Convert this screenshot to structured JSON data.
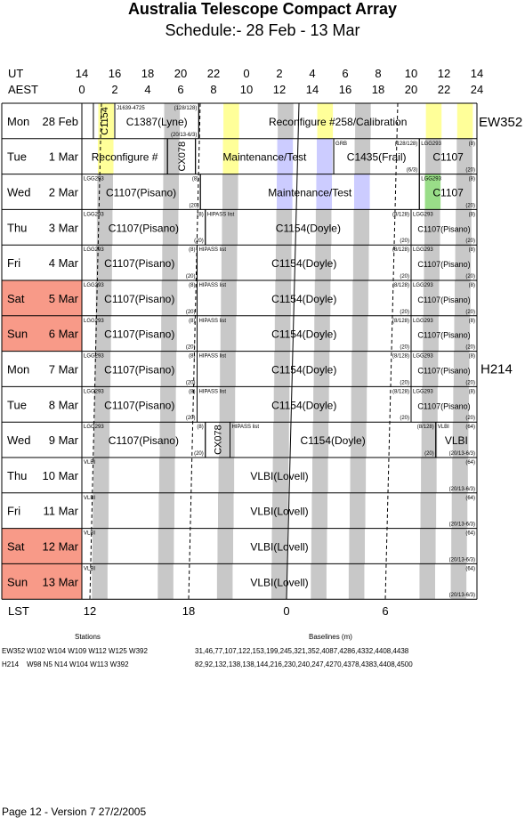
{
  "title": "Australia Telescope Compact Array",
  "subtitle": "Schedule:- 28 Feb - 13 Mar",
  "axis": {
    "ut_label": "UT",
    "aest_label": "AEST",
    "lst_label": "LST",
    "ut_ticks": [
      "14",
      "16",
      "18",
      "20",
      "22",
      "0",
      "2",
      "4",
      "6",
      "8",
      "10",
      "12",
      "14"
    ],
    "aest_ticks": [
      "0",
      "2",
      "4",
      "6",
      "8",
      "10",
      "12",
      "14",
      "16",
      "18",
      "20",
      "22",
      "24"
    ],
    "lst_ticks": [
      "12",
      "18",
      "0",
      "6"
    ]
  },
  "rows": [
    {
      "day": "Mon",
      "date": "28 Feb",
      "weekend": false
    },
    {
      "day": "Tue",
      "date": "1 Mar",
      "weekend": false
    },
    {
      "day": "Wed",
      "date": "2 Mar",
      "weekend": false
    },
    {
      "day": "Thu",
      "date": "3 Mar",
      "weekend": false
    },
    {
      "day": "Fri",
      "date": "4 Mar",
      "weekend": false
    },
    {
      "day": "Sat",
      "date": "5 Mar",
      "weekend": true
    },
    {
      "day": "Sun",
      "date": "6 Mar",
      "weekend": true
    },
    {
      "day": "Mon",
      "date": "7 Mar",
      "weekend": false
    },
    {
      "day": "Tue",
      "date": "8 Mar",
      "weekend": false
    },
    {
      "day": "Wed",
      "date": "9 Mar",
      "weekend": false
    },
    {
      "day": "Thu",
      "date": "10 Mar",
      "weekend": false
    },
    {
      "day": "Fri",
      "date": "11 Mar",
      "weekend": false
    },
    {
      "day": "Sat",
      "date": "12 Mar",
      "weekend": true
    },
    {
      "day": "Sun",
      "date": "13 Mar",
      "weekend": true
    }
  ],
  "config_labels": [
    "EW352",
    "H214"
  ],
  "blocks": [
    {
      "row": 0,
      "t0": 0.7,
      "t1": 2.0,
      "label": "C1154",
      "vertical": true,
      "size": 11
    },
    {
      "row": 0,
      "t0": 2.0,
      "t1": 7.1,
      "label": "C1387(Lyne)",
      "size": 12,
      "tl": "J1639-4725",
      "tr": "(128/128)",
      "br": "(20/13-6/3)"
    },
    {
      "row": 0,
      "t0": 7.1,
      "t1": 24.0,
      "label": "Reconfigure #258/Calibration",
      "size": 12
    },
    {
      "row": 1,
      "t0": 0,
      "t1": 5.2,
      "label": "Reconfigure #",
      "size": 12
    },
    {
      "row": 1,
      "t0": 5.2,
      "t1": 6.9,
      "label": "CX078",
      "vertical": true,
      "size": 11
    },
    {
      "row": 1,
      "t0": 6.9,
      "t1": 15.3,
      "label": "Maintenance/Test",
      "size": 12
    },
    {
      "row": 1,
      "t0": 15.3,
      "t1": 20.5,
      "label": "C1435(Frail)",
      "size": 12,
      "tl": "GRB",
      "tr": "(128/128)",
      "br": "(6/3)"
    },
    {
      "row": 1,
      "t0": 20.5,
      "t1": 24.0,
      "label": "C1107",
      "size": 12,
      "tl": "LGG293",
      "tr": "(8)",
      "br": "(20)"
    },
    {
      "row": 2,
      "t0": 0,
      "t1": 7.2,
      "label": "C1107(Pisano)",
      "size": 12,
      "tl": "LGG293",
      "tr": "(8)",
      "br": "(20)"
    },
    {
      "row": 2,
      "t0": 7.2,
      "t1": 20.5,
      "label": "Maintenance/Test",
      "size": 12
    },
    {
      "row": 2,
      "t0": 20.5,
      "t1": 24.0,
      "label": "C1107",
      "size": 12,
      "tl": "LGG293",
      "tr": "(8)",
      "br": "(20)"
    },
    {
      "row": 3,
      "t0": 0,
      "t1": 7.5,
      "label": "C1107(Pisano)",
      "size": 12,
      "tl": "LGG293",
      "tr": "(8)",
      "br": "(20)"
    },
    {
      "row": 3,
      "t0": 7.5,
      "t1": 20.0,
      "label": "C1154(Doyle)",
      "size": 12,
      "tl": "HIPASS list",
      "tr": "(8/128)",
      "br": "(20)"
    },
    {
      "row": 3,
      "t0": 20.0,
      "t1": 24.0,
      "label": "C1107(Pisano)",
      "size": 9,
      "tl": "LGG293",
      "tr": "(8)",
      "br": "(20)"
    },
    {
      "row": 4,
      "t0": 0,
      "t1": 7.0,
      "label": "C1107(Pisano)",
      "size": 12,
      "tl": "LGG293",
      "tr": "(8)",
      "br": "(20)"
    },
    {
      "row": 4,
      "t0": 7.0,
      "t1": 20.0,
      "label": "C1154(Doyle)",
      "size": 12,
      "tl": "HIPASS list",
      "tr": "(8/128)",
      "br": "(20)"
    },
    {
      "row": 4,
      "t0": 20.0,
      "t1": 24.0,
      "label": "C1107(Pisano)",
      "size": 9,
      "tl": "LGG293",
      "tr": "(8)",
      "br": "(20)"
    },
    {
      "row": 5,
      "t0": 0,
      "t1": 7.0,
      "label": "C1107(Pisano)",
      "size": 12,
      "tl": "LGG293",
      "tr": "(8)",
      "br": "(20)"
    },
    {
      "row": 5,
      "t0": 7.0,
      "t1": 20.0,
      "label": "C1154(Doyle)",
      "size": 12,
      "tl": "HIPASS list",
      "tr": "(8/128)",
      "br": "(20)"
    },
    {
      "row": 5,
      "t0": 20.0,
      "t1": 24.0,
      "label": "C1107(Pisano)",
      "size": 9,
      "tl": "LGG293",
      "tr": "(8)",
      "br": "(20)"
    },
    {
      "row": 6,
      "t0": 0,
      "t1": 7.0,
      "label": "C1107(Pisano)",
      "size": 12,
      "tl": "LGG293",
      "tr": "(8)",
      "br": "(20)"
    },
    {
      "row": 6,
      "t0": 7.0,
      "t1": 20.0,
      "label": "C1154(Doyle)",
      "size": 12,
      "tl": "HIPASS list",
      "tr": "(8/128)",
      "br": "(20)"
    },
    {
      "row": 6,
      "t0": 20.0,
      "t1": 24.0,
      "label": "C1107(Pisano)",
      "size": 9,
      "tl": "LGG293",
      "tr": "(8)",
      "br": "(20)"
    },
    {
      "row": 7,
      "t0": 0,
      "t1": 7.0,
      "label": "C1107(Pisano)",
      "size": 12,
      "tl": "LGG293",
      "tr": "(8)",
      "br": "(20)"
    },
    {
      "row": 7,
      "t0": 7.0,
      "t1": 20.0,
      "label": "C1154(Doyle)",
      "size": 12,
      "tl": "HIPASS list",
      "tr": "(8/128)",
      "br": "(20)"
    },
    {
      "row": 7,
      "t0": 20.0,
      "t1": 24.0,
      "label": "C1107(Pisano)",
      "size": 9,
      "tl": "LGG293",
      "tr": "(8)",
      "br": "(20)"
    },
    {
      "row": 8,
      "t0": 0,
      "t1": 7.0,
      "label": "C1107(Pisano)",
      "size": 12,
      "tl": "LGG293",
      "tr": "(8)",
      "br": "(20)"
    },
    {
      "row": 8,
      "t0": 7.0,
      "t1": 20.0,
      "label": "C1154(Doyle)",
      "size": 12,
      "tl": "HIPASS list",
      "tr": "(8/128)",
      "br": "(20)"
    },
    {
      "row": 8,
      "t0": 20.0,
      "t1": 24.0,
      "label": "C1107(Pisano)",
      "size": 9,
      "tl": "LGG293",
      "tr": "(8)",
      "br": "(20)"
    },
    {
      "row": 9,
      "t0": 0,
      "t1": 7.5,
      "label": "C1107(Pisano)",
      "size": 12,
      "tl": "LGG293",
      "tr": "(8)",
      "br": "(20)"
    },
    {
      "row": 9,
      "t0": 7.5,
      "t1": 9.0,
      "label": "CX078",
      "vertical": true,
      "size": 11
    },
    {
      "row": 9,
      "t0": 9.0,
      "t1": 21.5,
      "label": "C1154(Doyle)",
      "size": 12,
      "tl": "HIPASS list",
      "tr": "(8/128)",
      "br": "(20)"
    },
    {
      "row": 9,
      "t0": 21.5,
      "t1": 24.0,
      "label": "VLBI",
      "size": 12,
      "tl": "VLBI",
      "tr": "(64)",
      "br": "(20/13-6/3)"
    },
    {
      "row": 10,
      "t0": 0,
      "t1": 24.0,
      "label": "VLBI(Lovell)",
      "size": 12,
      "tl": "VLBI",
      "tr": "(64)",
      "br": "(20/13-6/3)"
    },
    {
      "row": 11,
      "t0": 0,
      "t1": 24.0,
      "label": "VLBI(Lovell)",
      "size": 12,
      "tl": "VLBI",
      "tr": "(64)",
      "br": "(20/13-6/3)"
    },
    {
      "row": 12,
      "t0": 0,
      "t1": 24.0,
      "label": "VLBI(Lovell)",
      "size": 12,
      "tl": "VLBI",
      "tr": "(64)",
      "br": "(20/13-6/3)"
    },
    {
      "row": 13,
      "t0": 0,
      "t1": 24.0,
      "label": "VLBI(Lovell)",
      "size": 12,
      "tl": "VLBI",
      "tr": "(64)",
      "br": "(20/13-6/3)"
    }
  ],
  "footer": {
    "stations_label": "Stations",
    "baselines_label": "Baselines (m)",
    "configs": [
      {
        "name": "EW352",
        "stations": "W102 W104 W109 W112 W125 W392",
        "baselines": "31,46,77,107,122,153,199,245,321,352,4087,4286,4332,4408,4438"
      },
      {
        "name": "H214",
        "stations": "W98 N5 N14 W104 W113 W392",
        "baselines": "82,92,132,138,138,144,216,230,240,247,4270,4378,4383,4408,4500"
      }
    ],
    "page": "Page 12 - Version 7  27/2/2005"
  }
}
